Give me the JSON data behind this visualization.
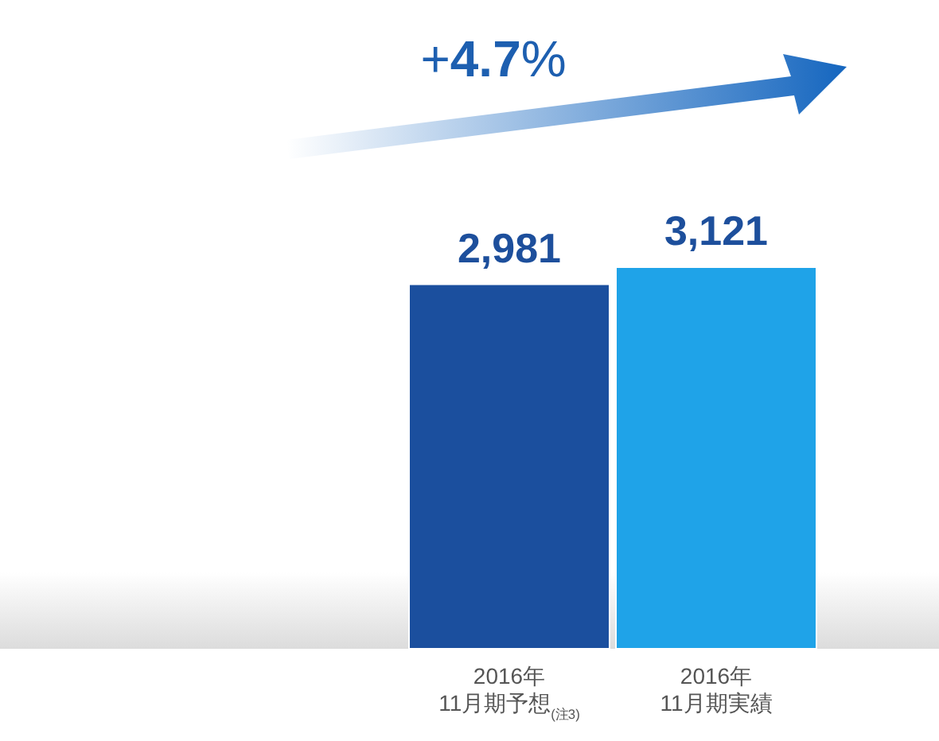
{
  "chart_data": {
    "type": "bar",
    "categories": [
      "2016年\n11月期予想$_{(注3)}$",
      "2016年\n11月期実績"
    ],
    "values": [
      2981,
      3121
    ],
    "colors": [
      "#1b4f9e",
      "#1fa3e8"
    ],
    "data_labels": true,
    "value_labels": [
      "2,981",
      "3,121"
    ],
    "annotations": [
      "+**4.7**%"
    ]
  }
}
